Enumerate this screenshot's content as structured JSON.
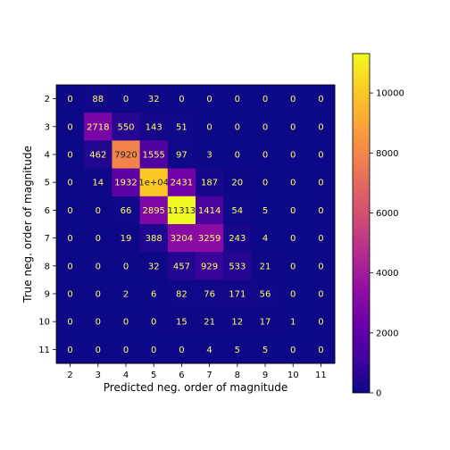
{
  "chart_data": {
    "type": "heatmap",
    "title": "",
    "xlabel": "Predicted neg. order of magnitude",
    "ylabel": "True neg. order of magnitude",
    "x_categories": [
      "2",
      "3",
      "4",
      "5",
      "6",
      "7",
      "8",
      "9",
      "10",
      "11"
    ],
    "y_categories": [
      "2",
      "3",
      "4",
      "5",
      "6",
      "7",
      "8",
      "9",
      "10",
      "11"
    ],
    "values": [
      [
        0,
        88,
        0,
        32,
        0,
        0,
        0,
        0,
        0,
        0
      ],
      [
        0,
        2718,
        550,
        143,
        51,
        0,
        0,
        0,
        0,
        0
      ],
      [
        0,
        462,
        7920,
        1555,
        97,
        3,
        0,
        0,
        0,
        0
      ],
      [
        0,
        14,
        1932,
        10000,
        2431,
        187,
        20,
        0,
        0,
        0
      ],
      [
        0,
        0,
        66,
        2895,
        11313,
        1414,
        54,
        5,
        0,
        0
      ],
      [
        0,
        0,
        19,
        388,
        3204,
        3259,
        243,
        4,
        0,
        0
      ],
      [
        0,
        0,
        0,
        32,
        457,
        929,
        533,
        21,
        0,
        0
      ],
      [
        0,
        0,
        2,
        6,
        82,
        76,
        171,
        56,
        0,
        0
      ],
      [
        0,
        0,
        0,
        0,
        15,
        21,
        12,
        17,
        1,
        0
      ],
      [
        0,
        0,
        0,
        0,
        0,
        4,
        5,
        5,
        0,
        0
      ]
    ],
    "cell_labels": [
      [
        "0",
        "88",
        "0",
        "32",
        "0",
        "0",
        "0",
        "0",
        "0",
        "0"
      ],
      [
        "0",
        "2718",
        "550",
        "143",
        "51",
        "0",
        "0",
        "0",
        "0",
        "0"
      ],
      [
        "0",
        "462",
        "7920",
        "1555",
        "97",
        "3",
        "0",
        "0",
        "0",
        "0"
      ],
      [
        "0",
        "14",
        "1932",
        "1e+04",
        "2431",
        "187",
        "20",
        "0",
        "0",
        "0"
      ],
      [
        "0",
        "0",
        "66",
        "2895",
        "11313",
        "1414",
        "54",
        "5",
        "0",
        "0"
      ],
      [
        "0",
        "0",
        "19",
        "388",
        "3204",
        "3259",
        "243",
        "4",
        "0",
        "0"
      ],
      [
        "0",
        "0",
        "0",
        "32",
        "457",
        "929",
        "533",
        "21",
        "0",
        "0"
      ],
      [
        "0",
        "0",
        "2",
        "6",
        "82",
        "76",
        "171",
        "56",
        "0",
        "0"
      ],
      [
        "0",
        "0",
        "0",
        "0",
        "15",
        "21",
        "12",
        "17",
        "1",
        "0"
      ],
      [
        "0",
        "0",
        "0",
        "0",
        "0",
        "4",
        "5",
        "5",
        "0",
        "0"
      ]
    ],
    "colormap": "plasma",
    "color_range": [
      0,
      11313
    ],
    "colorbar_ticks": [
      0,
      2000,
      4000,
      6000,
      8000,
      10000
    ],
    "colorbar_tick_labels": [
      "0",
      "2000",
      "4000",
      "6000",
      "8000",
      "10000"
    ],
    "grid": false,
    "legend": "colorbar-right",
    "label_color_dark": "#1f1f1f",
    "label_color_light": "#ffff66"
  }
}
